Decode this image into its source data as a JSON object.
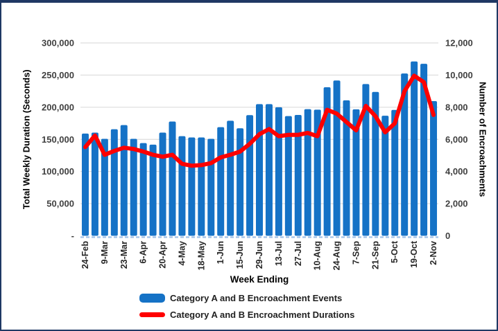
{
  "chart_data": {
    "type": "combo",
    "categories": [
      "24-Feb",
      "2-Mar",
      "9-Mar",
      "16-Mar",
      "23-Mar",
      "30-Mar",
      "6-Apr",
      "13-Apr",
      "20-Apr",
      "27-Apr",
      "4-May",
      "11-May",
      "18-May",
      "25-May",
      "1-Jun",
      "8-Jun",
      "15-Jun",
      "22-Jun",
      "29-Jun",
      "6-Jul",
      "13-Jul",
      "20-Jul",
      "27-Jul",
      "3-Aug",
      "10-Aug",
      "17-Aug",
      "24-Aug",
      "31-Aug",
      "7-Sep",
      "14-Sep",
      "21-Sep",
      "28-Sep",
      "5-Oct",
      "12-Oct",
      "19-Oct",
      "26-Oct",
      "2-Nov"
    ],
    "x_label_every": 2,
    "xlabel": "Week Ending",
    "series": [
      {
        "name": "Category A and B Encroachment Events",
        "type": "bar",
        "axis": "right",
        "color": "#1572C6",
        "values": [
          6360,
          6420,
          6030,
          6630,
          6890,
          6030,
          5770,
          5670,
          6420,
          7110,
          6200,
          6120,
          6120,
          6030,
          6760,
          7160,
          6690,
          7510,
          8190,
          8190,
          8000,
          7450,
          7520,
          7880,
          7850,
          9240,
          9660,
          8430,
          7870,
          9440,
          8950,
          7470,
          7830,
          10100,
          10850,
          10700,
          8380
        ]
      },
      {
        "name": "Category A and B Encroachment Durations",
        "type": "line",
        "axis": "left",
        "color": "#FF0000",
        "values": [
          138000,
          156000,
          126000,
          132000,
          137000,
          135000,
          131000,
          126000,
          123000,
          126000,
          112000,
          109000,
          110000,
          113000,
          122000,
          126000,
          131000,
          143000,
          158000,
          166000,
          155000,
          157000,
          157000,
          160000,
          155000,
          196000,
          190000,
          177000,
          164000,
          202000,
          186000,
          161000,
          175000,
          225000,
          249000,
          239000,
          188000
        ]
      }
    ],
    "left_axis": {
      "title": "Total Weekly Duration (Seconds)",
      "min": 0,
      "max": 300000,
      "tick_step": 50000,
      "ticks_top_to_bottom": [
        "300,000",
        "250,000",
        "200,000",
        "150,000",
        "100,000",
        "50,000",
        "-"
      ]
    },
    "right_axis": {
      "title": "Number of Encroachments",
      "min": 0,
      "max": 12000,
      "tick_step": 2000,
      "ticks_top_to_bottom": [
        "12,000",
        "10,000",
        "8,000",
        "6,000",
        "4,000",
        "2,000",
        "0"
      ]
    },
    "grid": "horizontal",
    "legend_position": "bottom"
  },
  "legend": {
    "events_label": "Category A and B Encroachment Events",
    "durations_label": "Category A and B Encroachment Durations"
  },
  "colors": {
    "bar_blue": "#1572C6",
    "line_red": "#FF0000",
    "frame_navy": "#1F3864",
    "gridline_gray": "#D6D6D6",
    "axis_dash_blue": "#A8C6E8",
    "tick_text": "#404040",
    "title_text": "#000000"
  }
}
